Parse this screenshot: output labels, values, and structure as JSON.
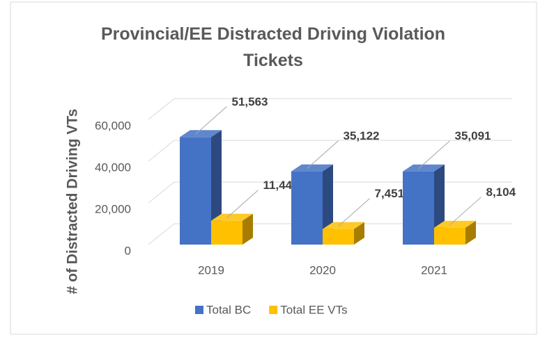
{
  "chart_data": {
    "type": "bar3d",
    "title": "Provincial/EE Distracted Driving Violation Tickets",
    "ylabel": "# of Distracted Driving VTs",
    "categories": [
      "2019",
      "2020",
      "2021"
    ],
    "series": [
      {
        "name": "Total BC",
        "color": "#4472c4",
        "values": [
          51563,
          35122,
          35091
        ],
        "value_labels": [
          "51,563",
          "35,122",
          "35,091"
        ]
      },
      {
        "name": "Total EE VTs",
        "color": "#ffc000",
        "values": [
          11441,
          7451,
          8104
        ],
        "value_labels": [
          "11,441",
          "7,451",
          "8,104"
        ]
      }
    ],
    "ylim": [
      0,
      60000
    ],
    "yticks": [
      0,
      {
        "value": 20000,
        "label": "20,000"
      },
      {
        "value": 40000,
        "label": "40,000"
      },
      {
        "value": 60000,
        "label": "60,000"
      }
    ],
    "grid": true,
    "legend": "bottom"
  }
}
